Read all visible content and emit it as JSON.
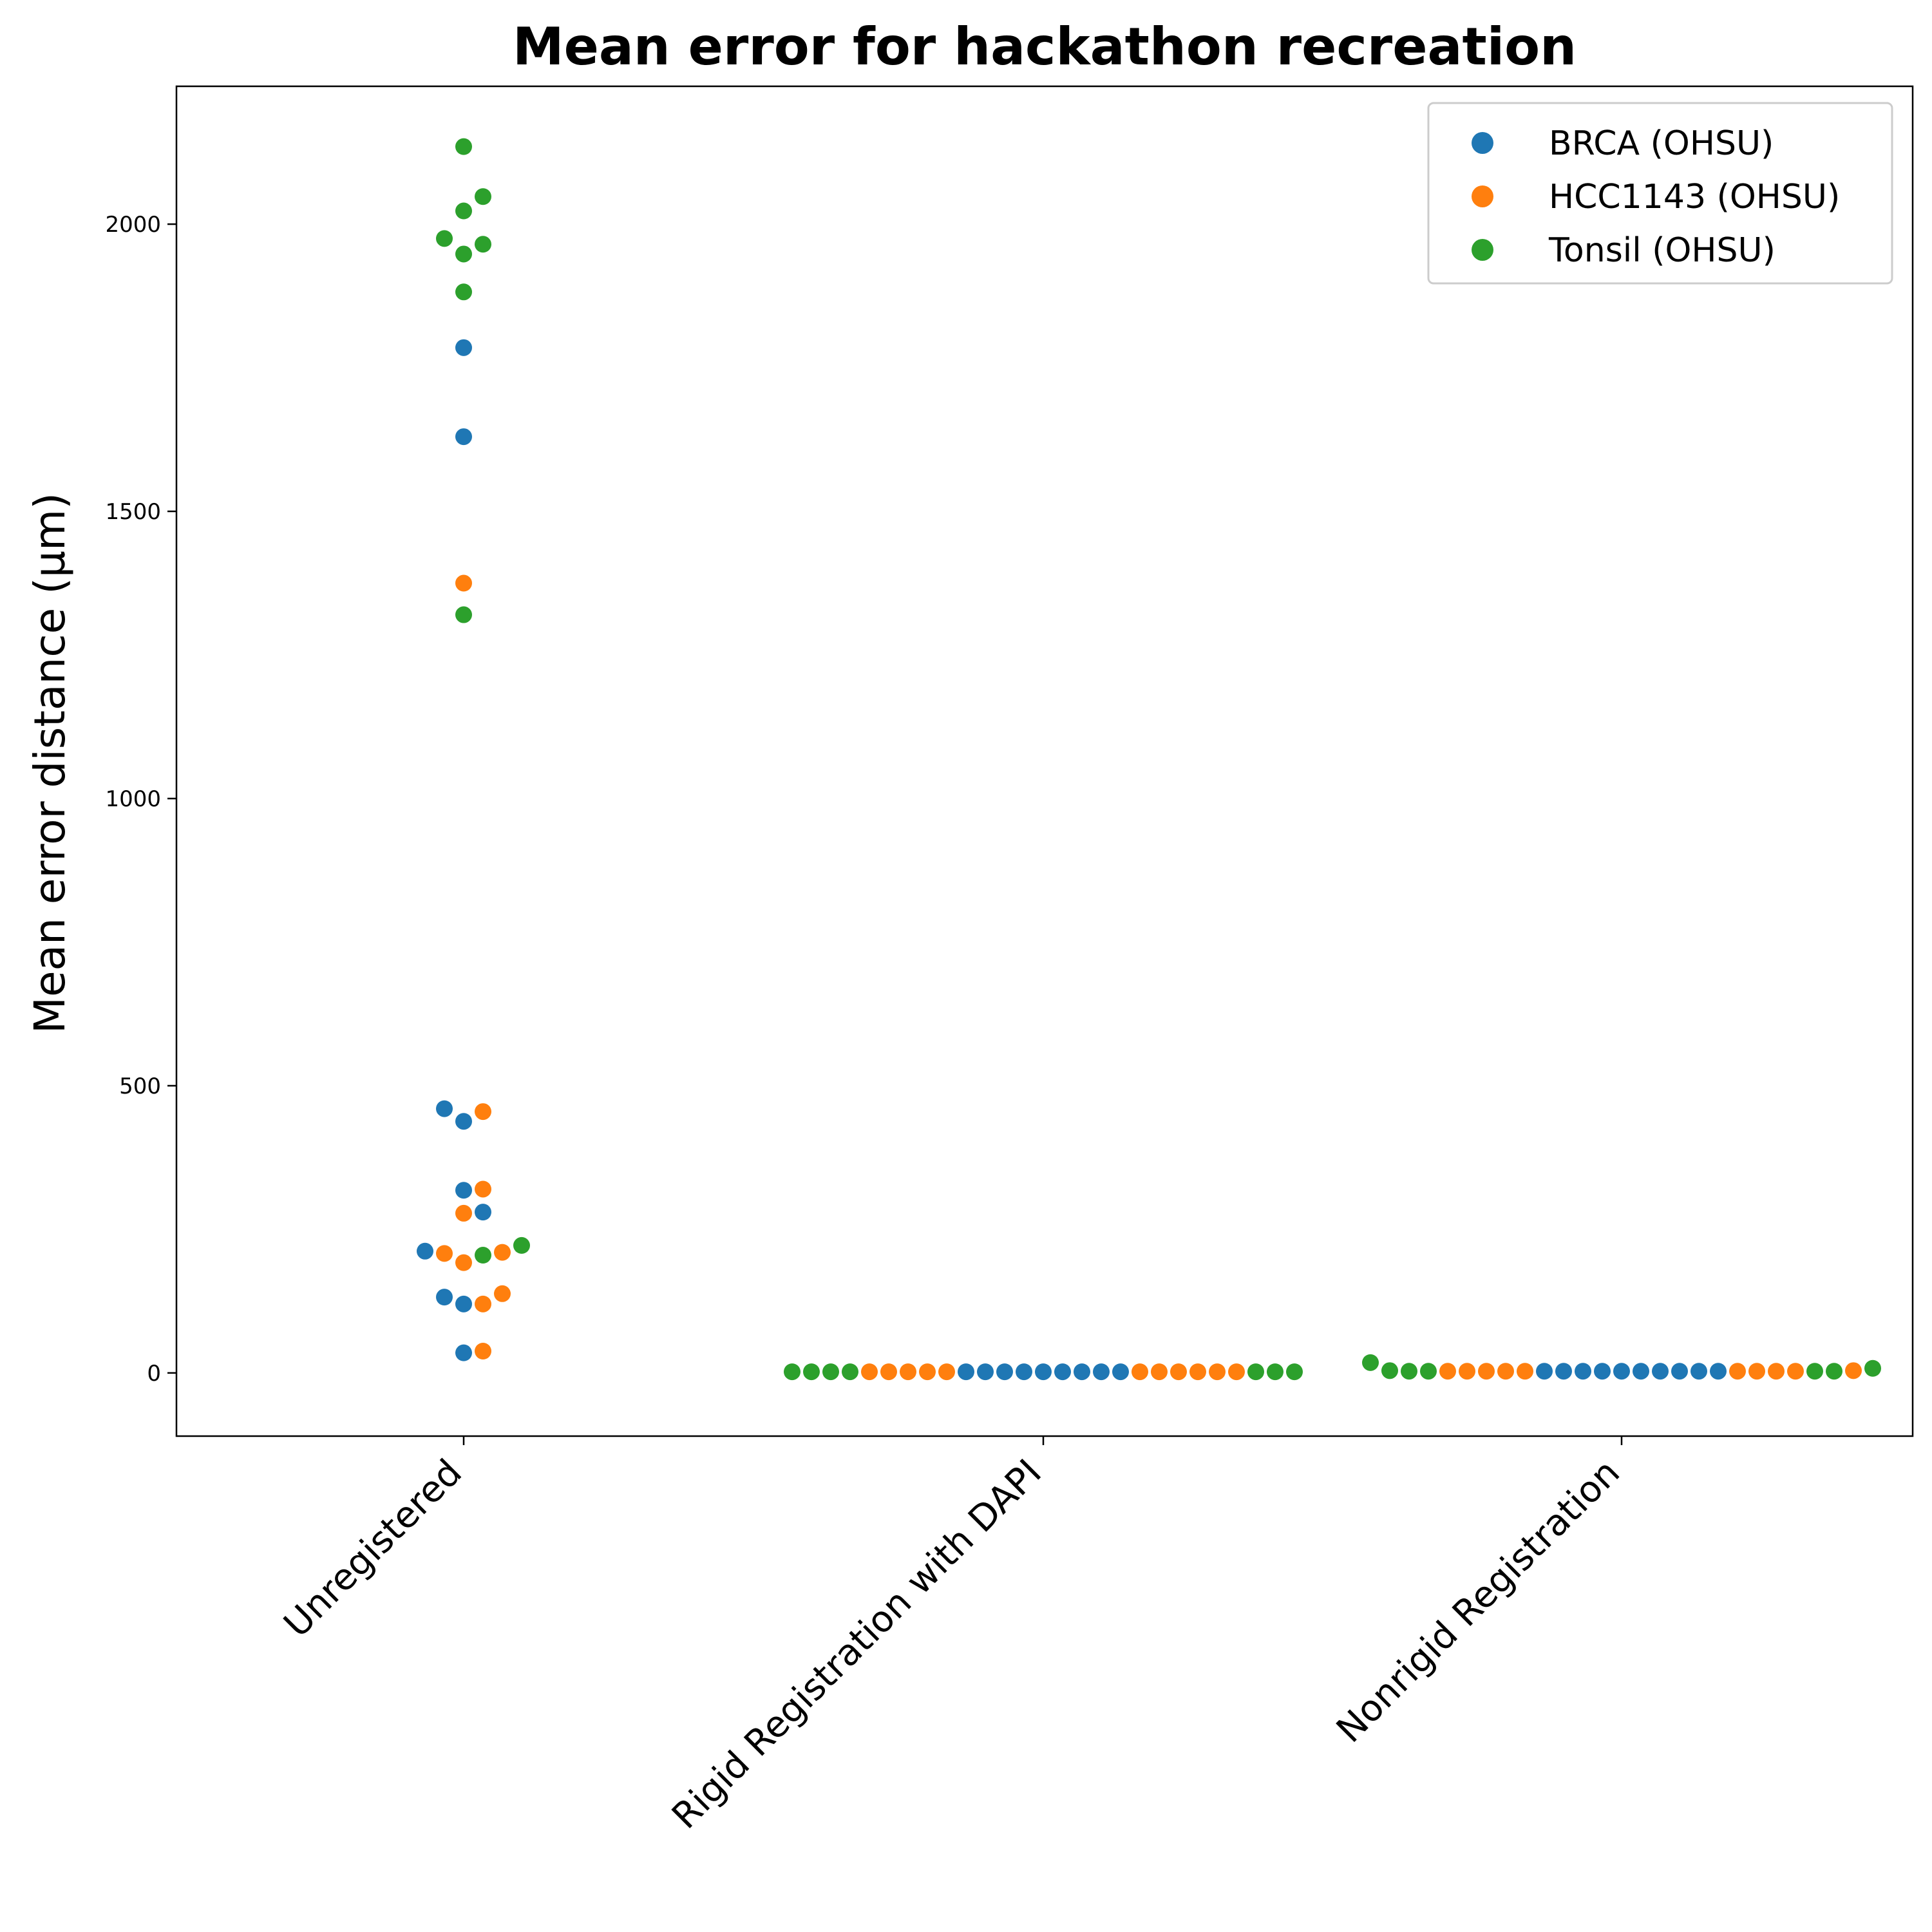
{
  "chart_data": {
    "type": "scatter",
    "title": "Mean error for hackathon recreation",
    "xlabel": "",
    "ylabel": "Mean error distance (µm)",
    "categories": [
      "Unregistered",
      "Rigid Registration with DAPI",
      "Nonrigid Registration"
    ],
    "ylim": [
      -110,
      2240
    ],
    "yticks": [
      0,
      500,
      1000,
      1500,
      2000
    ],
    "grid": false,
    "legend_position": "top-right",
    "series": [
      {
        "name": "BRCA (OHSU)",
        "color": "#1f77b4",
        "points": [
          {
            "category": "Unregistered",
            "values": [
              1785,
              1630,
              460,
              438,
              318,
              280,
              212,
              132,
              120,
              35
            ]
          },
          {
            "category": "Rigid Registration with DAPI",
            "values": [
              2,
              2,
              2,
              2,
              2,
              2,
              2,
              2,
              2
            ]
          },
          {
            "category": "Nonrigid Registration",
            "values": [
              3,
              3,
              3,
              3,
              3,
              3,
              3,
              3,
              3,
              3
            ]
          }
        ]
      },
      {
        "name": "HCC1143 (OHSU)",
        "color": "#ff7f0e",
        "points": [
          {
            "category": "Unregistered",
            "values": [
              1375,
              455,
              320,
              278,
              210,
              208,
              192,
              138,
              120,
              38
            ]
          },
          {
            "category": "Rigid Registration with DAPI",
            "values": [
              2,
              2,
              2,
              2,
              2,
              2,
              2,
              2,
              2,
              2,
              2
            ]
          },
          {
            "category": "Nonrigid Registration",
            "values": [
              4,
              3,
              3,
              3,
              3,
              3,
              3,
              3,
              3,
              3
            ]
          }
        ]
      },
      {
        "name": "Tonsil (OHSU)",
        "color": "#2ca02c",
        "points": [
          {
            "category": "Unregistered",
            "values": [
              2135,
              2048,
              2023,
              1975,
              1965,
              1948,
              1882,
              1320,
              222,
              205
            ]
          },
          {
            "category": "Rigid Registration with DAPI",
            "values": [
              2,
              2,
              2,
              2,
              2,
              2,
              2
            ]
          },
          {
            "category": "Nonrigid Registration",
            "values": [
              18,
              4,
              3,
              3,
              3,
              3,
              8
            ]
          }
        ]
      }
    ]
  }
}
